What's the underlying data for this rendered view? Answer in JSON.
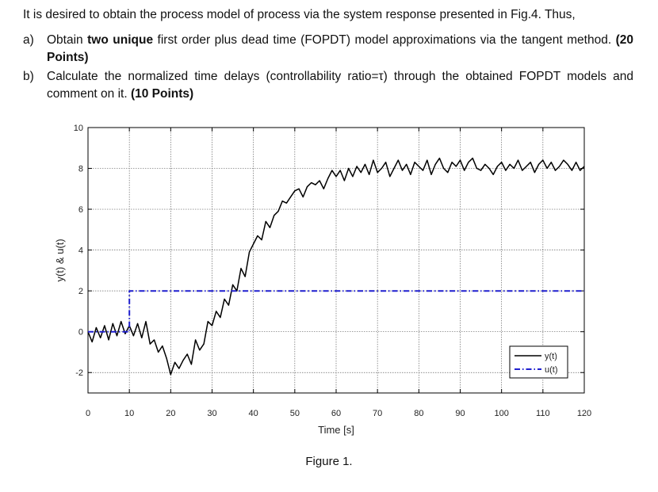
{
  "question": {
    "intro": "It is desired to obtain the process model of process via the system response presented in Fig.4. Thus,",
    "items": [
      {
        "marker": "a)",
        "pre": "Obtain ",
        "bold1": "two unique",
        "mid": " first order plus dead time (FOPDT) model approximations via the tangent method. ",
        "bold2": "(20 Points)"
      },
      {
        "marker": "b)",
        "pre": "Calculate the normalized time delays (controllability ratio=τ) through the obtained FOPDT models and comment on it. ",
        "bold2": "(10 Points)"
      }
    ]
  },
  "figure_caption": "Figure 1.",
  "chart_data": {
    "type": "line",
    "xlabel": "Time [s]",
    "ylabel": "y(t) & u(t)",
    "xlim": [
      0,
      120
    ],
    "ylim": [
      -3,
      10
    ],
    "x_ticks": [
      0,
      10,
      20,
      30,
      40,
      50,
      60,
      70,
      80,
      90,
      100,
      110,
      120
    ],
    "y_ticks": [
      -2,
      0,
      2,
      4,
      6,
      8,
      10
    ],
    "grid": true,
    "legend_position": "bottom-right",
    "series": [
      {
        "name": "y(t)",
        "style": "solid",
        "color": "#000000",
        "x": [
          0,
          1,
          2,
          3,
          4,
          5,
          6,
          7,
          8,
          9,
          10,
          11,
          12,
          13,
          14,
          15,
          16,
          17,
          18,
          19,
          20,
          21,
          22,
          23,
          24,
          25,
          26,
          27,
          28,
          29,
          30,
          31,
          32,
          33,
          34,
          35,
          36,
          37,
          38,
          39,
          40,
          41,
          42,
          43,
          44,
          45,
          46,
          47,
          48,
          49,
          50,
          51,
          52,
          53,
          54,
          55,
          56,
          57,
          58,
          59,
          60,
          61,
          62,
          63,
          64,
          65,
          66,
          67,
          68,
          69,
          70,
          71,
          72,
          73,
          74,
          75,
          76,
          77,
          78,
          79,
          80,
          81,
          82,
          83,
          84,
          85,
          86,
          87,
          88,
          89,
          90,
          91,
          92,
          93,
          94,
          95,
          96,
          97,
          98,
          99,
          100,
          101,
          102,
          103,
          104,
          105,
          106,
          107,
          108,
          109,
          110,
          111,
          112,
          113,
          114,
          115,
          116,
          117,
          118,
          119,
          120
        ],
        "values": [
          0.0,
          -0.5,
          0.2,
          -0.3,
          0.3,
          -0.4,
          0.4,
          -0.2,
          0.5,
          -0.1,
          0.3,
          -0.2,
          0.4,
          -0.3,
          0.5,
          -0.6,
          -0.4,
          -1.0,
          -0.7,
          -1.3,
          -2.1,
          -1.5,
          -1.8,
          -1.4,
          -1.1,
          -1.6,
          -0.4,
          -0.9,
          -0.6,
          0.5,
          0.3,
          1.0,
          0.7,
          1.6,
          1.3,
          2.3,
          2.0,
          3.1,
          2.7,
          3.9,
          4.3,
          4.7,
          4.5,
          5.4,
          5.1,
          5.7,
          5.9,
          6.4,
          6.3,
          6.6,
          6.9,
          7.0,
          6.6,
          7.1,
          7.3,
          7.2,
          7.4,
          7.0,
          7.5,
          7.9,
          7.6,
          7.9,
          7.4,
          8.0,
          7.6,
          8.1,
          7.8,
          8.2,
          7.7,
          8.4,
          7.8,
          8.0,
          8.3,
          7.6,
          8.0,
          8.4,
          7.9,
          8.2,
          7.7,
          8.3,
          8.1,
          7.9,
          8.4,
          7.7,
          8.2,
          8.5,
          8.0,
          7.8,
          8.3,
          8.1,
          8.4,
          7.9,
          8.3,
          8.5,
          8.0,
          7.9,
          8.2,
          8.0,
          7.7,
          8.1,
          8.3,
          7.9,
          8.2,
          8.0,
          8.4,
          7.9,
          8.1,
          8.3,
          7.8,
          8.2,
          8.4,
          8.0,
          8.3,
          7.9,
          8.1,
          8.4,
          8.2,
          7.9,
          8.3,
          7.9,
          8.1
        ]
      },
      {
        "name": "u(t)",
        "style": "dash-dot",
        "color": "#1f1fcf",
        "x": [
          0,
          10,
          10,
          120
        ],
        "values": [
          0,
          0,
          2,
          2
        ]
      }
    ]
  }
}
